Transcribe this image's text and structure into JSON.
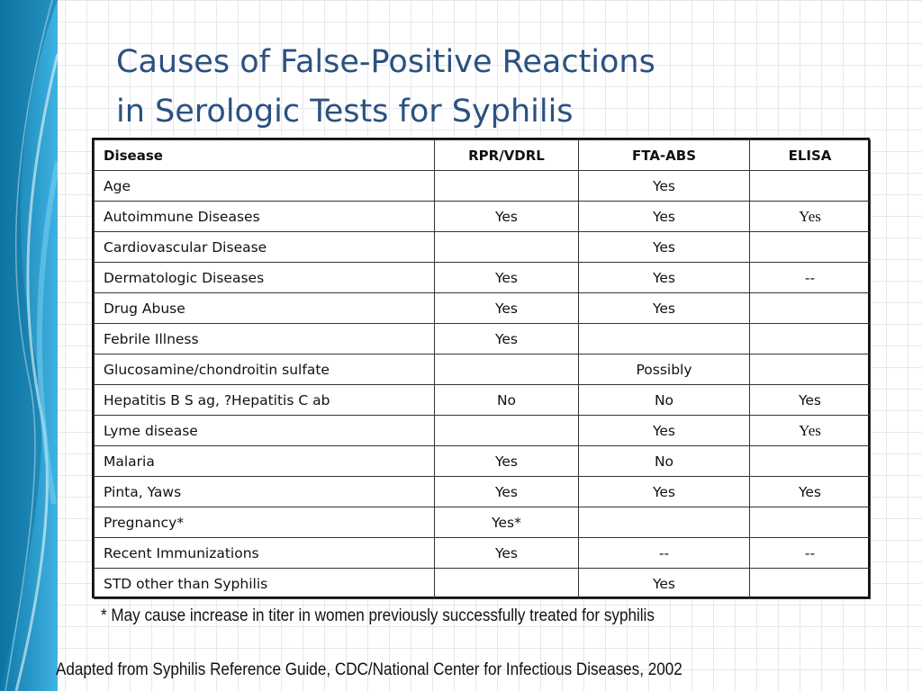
{
  "slide": {
    "title_line1": "Causes of False-Positive Reactions",
    "title_line2": "in Serologic Tests for Syphilis",
    "footnote": "* May cause increase in titer in women previously successfully treated for syphilis",
    "source": "Adapted from  Syphilis Reference Guide, CDC/National Center for Infectious Diseases, 2002"
  },
  "table": {
    "headers": [
      "Disease",
      "RPR/VDRL",
      "FTA-ABS",
      "ELISA"
    ],
    "rows": [
      [
        "Age",
        "",
        "Yes",
        ""
      ],
      [
        "Autoimmune Diseases",
        "Yes",
        "Yes",
        "Yes"
      ],
      [
        "Cardiovascular Disease",
        "",
        "Yes",
        ""
      ],
      [
        "Dermatologic Diseases",
        "Yes",
        "Yes",
        "--"
      ],
      [
        "Drug Abuse",
        "Yes",
        "Yes",
        ""
      ],
      [
        "Febrile Illness",
        "Yes",
        "",
        ""
      ],
      [
        "Glucosamine/chondroitin sulfate",
        "",
        "Possibly",
        ""
      ],
      [
        "Hepatitis B S ag, ?Hepatitis C ab",
        "No",
        "No",
        "Yes"
      ],
      [
        "Lyme disease",
        "",
        "Yes",
        "Yes"
      ],
      [
        "Malaria",
        "Yes",
        "No",
        ""
      ],
      [
        "Pinta, Yaws",
        "Yes",
        "Yes",
        "Yes"
      ],
      [
        "Pregnancy*",
        "Yes*",
        "",
        ""
      ],
      [
        "Recent Immunizations",
        "Yes",
        "--",
        "--"
      ],
      [
        "STD other than Syphilis",
        "",
        "Yes",
        ""
      ]
    ]
  },
  "colors": {
    "title": "#2a5180",
    "side_accent_dark": "#0f7fb0",
    "side_accent_light": "#3aaee0",
    "grid": "#e4e8ec"
  }
}
